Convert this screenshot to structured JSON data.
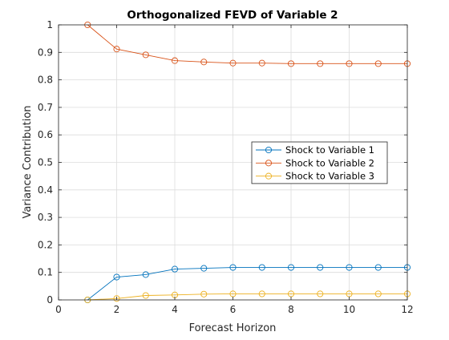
{
  "chart_data": {
    "type": "line",
    "title": "Orthogonalized FEVD of Variable 2",
    "xlabel": "Forecast Horizon",
    "ylabel": "Variance Contribution",
    "xlim": [
      0,
      12
    ],
    "ylim": [
      0,
      1
    ],
    "xticks": [
      0,
      2,
      4,
      6,
      8,
      10,
      12
    ],
    "yticks": [
      0,
      0.1,
      0.2,
      0.3,
      0.4,
      0.5,
      0.6,
      0.7,
      0.8,
      0.9,
      1
    ],
    "grid": true,
    "legend_position": "right-middle",
    "x": [
      1,
      2,
      3,
      4,
      5,
      6,
      7,
      8,
      9,
      10,
      11,
      12
    ],
    "series": [
      {
        "name": "Shock to Variable 1",
        "color": "#0072BD",
        "marker": "circle",
        "values": [
          0,
          0.083,
          0.092,
          0.112,
          0.115,
          0.118,
          0.118,
          0.118,
          0.118,
          0.118,
          0.118,
          0.118
        ]
      },
      {
        "name": "Shock to Variable 2",
        "color": "#D95319",
        "marker": "circle",
        "values": [
          1,
          0.912,
          0.891,
          0.87,
          0.865,
          0.861,
          0.861,
          0.859,
          0.859,
          0.859,
          0.859,
          0.859
        ]
      },
      {
        "name": "Shock to Variable 3",
        "color": "#EDB120",
        "marker": "circle",
        "values": [
          0,
          0.005,
          0.016,
          0.018,
          0.021,
          0.022,
          0.022,
          0.022,
          0.022,
          0.022,
          0.022,
          0.022
        ]
      }
    ]
  }
}
